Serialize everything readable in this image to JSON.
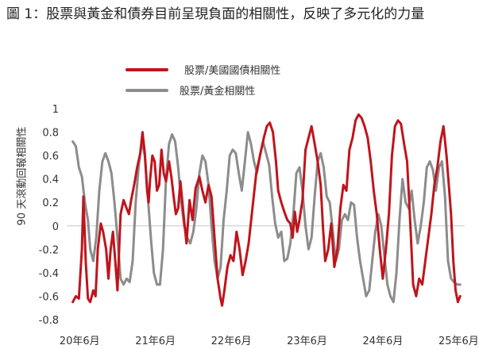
{
  "title": "圖 1：股票與黃金和債券目前呈現負面的相關性，反映了多元化的力量",
  "chart_data": {
    "type": "line",
    "ylabel": "90 天滾動回報相關性",
    "ylim": [
      -0.8,
      1
    ],
    "yticks": [
      "-0.8",
      "-0.6",
      "-0.4",
      "-0.2",
      "0",
      "0.2",
      "0.4",
      "0.6",
      "0.8",
      "1"
    ],
    "xlim": [
      2020.25,
      2025.5
    ],
    "xticks": [
      {
        "label": "20年6月",
        "x": 2020.42
      },
      {
        "label": "21年6月",
        "x": 2021.42
      },
      {
        "label": "22年6月",
        "x": 2022.42
      },
      {
        "label": "23年6月",
        "x": 2023.42
      },
      {
        "label": "24年6月",
        "x": 2024.42
      },
      {
        "label": "25年6月",
        "x": 2025.42
      }
    ],
    "grid": false,
    "legend": "top",
    "series": [
      {
        "name": "股票/美國國債相關性",
        "color": "#c0141c",
        "x": [
          2020.33,
          2020.37,
          2020.41,
          2020.45,
          2020.47,
          2020.5,
          2020.53,
          2020.56,
          2020.6,
          2020.63,
          2020.66,
          2020.7,
          2020.73,
          2020.77,
          2020.8,
          2020.83,
          2020.86,
          2020.89,
          2020.92,
          2020.96,
          2021.0,
          2021.04,
          2021.07,
          2021.1,
          2021.14,
          2021.18,
          2021.22,
          2021.25,
          2021.28,
          2021.31,
          2021.33,
          2021.35,
          2021.38,
          2021.41,
          2021.44,
          2021.47,
          2021.5,
          2021.53,
          2021.56,
          2021.6,
          2021.63,
          2021.66,
          2021.69,
          2021.72,
          2021.75,
          2021.79,
          2021.83,
          2021.87,
          2021.91,
          2021.95,
          2022.0,
          2022.04,
          2022.08,
          2022.12,
          2022.16,
          2022.2,
          2022.24,
          2022.28,
          2022.3,
          2022.33,
          2022.37,
          2022.41,
          2022.45,
          2022.49,
          2022.53,
          2022.57,
          2022.61,
          2022.65,
          2022.7,
          2022.75,
          2022.8,
          2022.85,
          2022.89,
          2022.93,
          2022.97,
          2023.01,
          2023.04,
          2023.08,
          2023.12,
          2023.16,
          2023.2,
          2023.23,
          2023.26,
          2023.29,
          2023.32,
          2023.36,
          2023.4,
          2023.44,
          2023.48,
          2023.52,
          2023.56,
          2023.6,
          2023.63,
          2023.66,
          2023.7,
          2023.74,
          2023.78,
          2023.82,
          2023.86,
          2023.9,
          2023.94,
          2023.98,
          2024.02,
          2024.06,
          2024.1,
          2024.14,
          2024.18,
          2024.22,
          2024.26,
          2024.3,
          2024.34,
          2024.38,
          2024.42,
          2024.46,
          2024.5,
          2024.54,
          2024.58,
          2024.62,
          2024.66,
          2024.7,
          2024.74,
          2024.78,
          2024.82,
          2024.86,
          2024.9,
          2024.94,
          2024.98,
          2025.02,
          2025.06,
          2025.1,
          2025.14,
          2025.18,
          2025.22,
          2025.26,
          2025.29,
          2025.32,
          2025.35,
          2025.38,
          2025.41,
          2025.44
        ],
        "values": [
          -0.65,
          -0.6,
          -0.62,
          -0.2,
          0.25,
          -0.3,
          -0.62,
          -0.65,
          -0.55,
          -0.6,
          -0.2,
          0.02,
          -0.05,
          -0.2,
          -0.45,
          -0.2,
          -0.05,
          -0.3,
          -0.55,
          0.1,
          0.22,
          0.15,
          0.1,
          0.22,
          0.35,
          0.5,
          0.62,
          0.8,
          0.62,
          0.3,
          0.2,
          0.4,
          0.6,
          0.55,
          0.3,
          0.35,
          0.65,
          0.45,
          0.38,
          0.55,
          0.42,
          0.25,
          0.1,
          0.15,
          0.38,
          0.1,
          -0.15,
          0.22,
          0.05,
          0.32,
          0.42,
          0.3,
          0.2,
          0.35,
          0.25,
          -0.1,
          -0.45,
          -0.62,
          -0.68,
          -0.55,
          -0.35,
          -0.25,
          -0.3,
          -0.05,
          -0.2,
          -0.42,
          -0.3,
          -0.15,
          0.15,
          0.45,
          0.6,
          0.75,
          0.85,
          0.88,
          0.8,
          0.55,
          0.3,
          0.2,
          0.12,
          0.05,
          0.02,
          -0.1,
          0.12,
          -0.05,
          0.05,
          0.22,
          0.65,
          0.75,
          0.85,
          0.7,
          0.55,
          0.35,
          0.0,
          -0.3,
          -0.2,
          0.02,
          -0.35,
          -0.2,
          0.15,
          0.35,
          0.3,
          0.65,
          0.75,
          0.9,
          0.95,
          0.92,
          0.85,
          0.75,
          0.55,
          0.3,
          0.1,
          -0.2,
          -0.45,
          -0.2,
          0.1,
          0.6,
          0.85,
          0.9,
          0.87,
          0.7,
          0.55,
          0.05,
          -0.5,
          -0.6,
          -0.45,
          -0.5,
          -0.3,
          -0.1,
          0.1,
          0.35,
          0.5,
          0.72,
          0.85,
          0.6,
          0.35,
          0.1,
          -0.3,
          -0.55,
          -0.65,
          -0.6
        ]
      },
      {
        "name": "股票/黃金相關性",
        "color": "#8c8c8c",
        "x": [
          2020.33,
          2020.37,
          2020.41,
          2020.45,
          2020.49,
          2020.53,
          2020.56,
          2020.6,
          2020.64,
          2020.68,
          2020.72,
          2020.76,
          2020.8,
          2020.84,
          2020.88,
          2020.92,
          2020.96,
          2021.0,
          2021.04,
          2021.08,
          2021.12,
          2021.16,
          2021.2,
          2021.24,
          2021.28,
          2021.32,
          2021.36,
          2021.4,
          2021.44,
          2021.48,
          2021.52,
          2021.56,
          2021.6,
          2021.64,
          2021.68,
          2021.72,
          2021.76,
          2021.8,
          2021.84,
          2021.88,
          2021.92,
          2021.96,
          2022.0,
          2022.04,
          2022.08,
          2022.12,
          2022.16,
          2022.2,
          2022.24,
          2022.28,
          2022.32,
          2022.36,
          2022.4,
          2022.44,
          2022.48,
          2022.52,
          2022.56,
          2022.6,
          2022.64,
          2022.68,
          2022.72,
          2022.76,
          2022.8,
          2022.84,
          2022.88,
          2022.92,
          2022.96,
          2023.0,
          2023.04,
          2023.08,
          2023.12,
          2023.16,
          2023.2,
          2023.24,
          2023.28,
          2023.32,
          2023.36,
          2023.4,
          2023.44,
          2023.48,
          2023.52,
          2023.56,
          2023.6,
          2023.64,
          2023.68,
          2023.72,
          2023.76,
          2023.8,
          2023.84,
          2023.88,
          2023.92,
          2023.96,
          2024.0,
          2024.04,
          2024.08,
          2024.12,
          2024.16,
          2024.2,
          2024.24,
          2024.28,
          2024.32,
          2024.36,
          2024.4,
          2024.44,
          2024.48,
          2024.52,
          2024.56,
          2024.6,
          2024.64,
          2024.68,
          2024.72,
          2024.76,
          2024.8,
          2024.84,
          2024.88,
          2024.92,
          2024.96,
          2025.0,
          2025.04,
          2025.08,
          2025.12,
          2025.16,
          2025.2,
          2025.24,
          2025.28,
          2025.32,
          2025.36,
          2025.4,
          2025.44
        ],
        "values": [
          0.72,
          0.68,
          0.5,
          0.42,
          0.2,
          0.05,
          -0.2,
          -0.3,
          -0.1,
          0.3,
          0.55,
          0.62,
          0.55,
          0.45,
          0.2,
          -0.1,
          -0.45,
          -0.5,
          -0.45,
          -0.48,
          -0.3,
          0.2,
          0.52,
          0.72,
          0.6,
          0.25,
          -0.1,
          -0.4,
          -0.5,
          -0.5,
          -0.2,
          0.4,
          0.7,
          0.78,
          0.72,
          0.5,
          0.2,
          0.0,
          -0.1,
          -0.15,
          -0.05,
          0.15,
          0.45,
          0.6,
          0.55,
          0.35,
          0.0,
          -0.3,
          -0.45,
          -0.35,
          0.05,
          0.3,
          0.6,
          0.65,
          0.62,
          0.45,
          0.3,
          0.55,
          0.8,
          0.7,
          0.55,
          0.45,
          0.6,
          0.72,
          0.62,
          0.52,
          0.25,
          0.02,
          -0.1,
          -0.05,
          -0.3,
          -0.28,
          -0.15,
          0.1,
          0.45,
          0.5,
          0.3,
          0.0,
          -0.2,
          -0.1,
          0.25,
          0.55,
          0.62,
          0.5,
          0.25,
          0.2,
          -0.05,
          -0.3,
          -0.2,
          0.05,
          0.1,
          0.05,
          0.2,
          0.18,
          -0.1,
          -0.3,
          -0.45,
          -0.6,
          -0.55,
          -0.3,
          -0.05,
          0.1,
          0.0,
          -0.25,
          -0.5,
          -0.6,
          -0.65,
          -0.4,
          0.05,
          0.4,
          0.2,
          0.15,
          0.3,
          0.05,
          -0.15,
          0.0,
          0.2,
          0.5,
          0.55,
          0.48,
          0.3,
          0.5,
          0.55,
          0.25,
          -0.3,
          -0.45,
          -0.48,
          -0.5,
          -0.5
        ]
      }
    ]
  }
}
